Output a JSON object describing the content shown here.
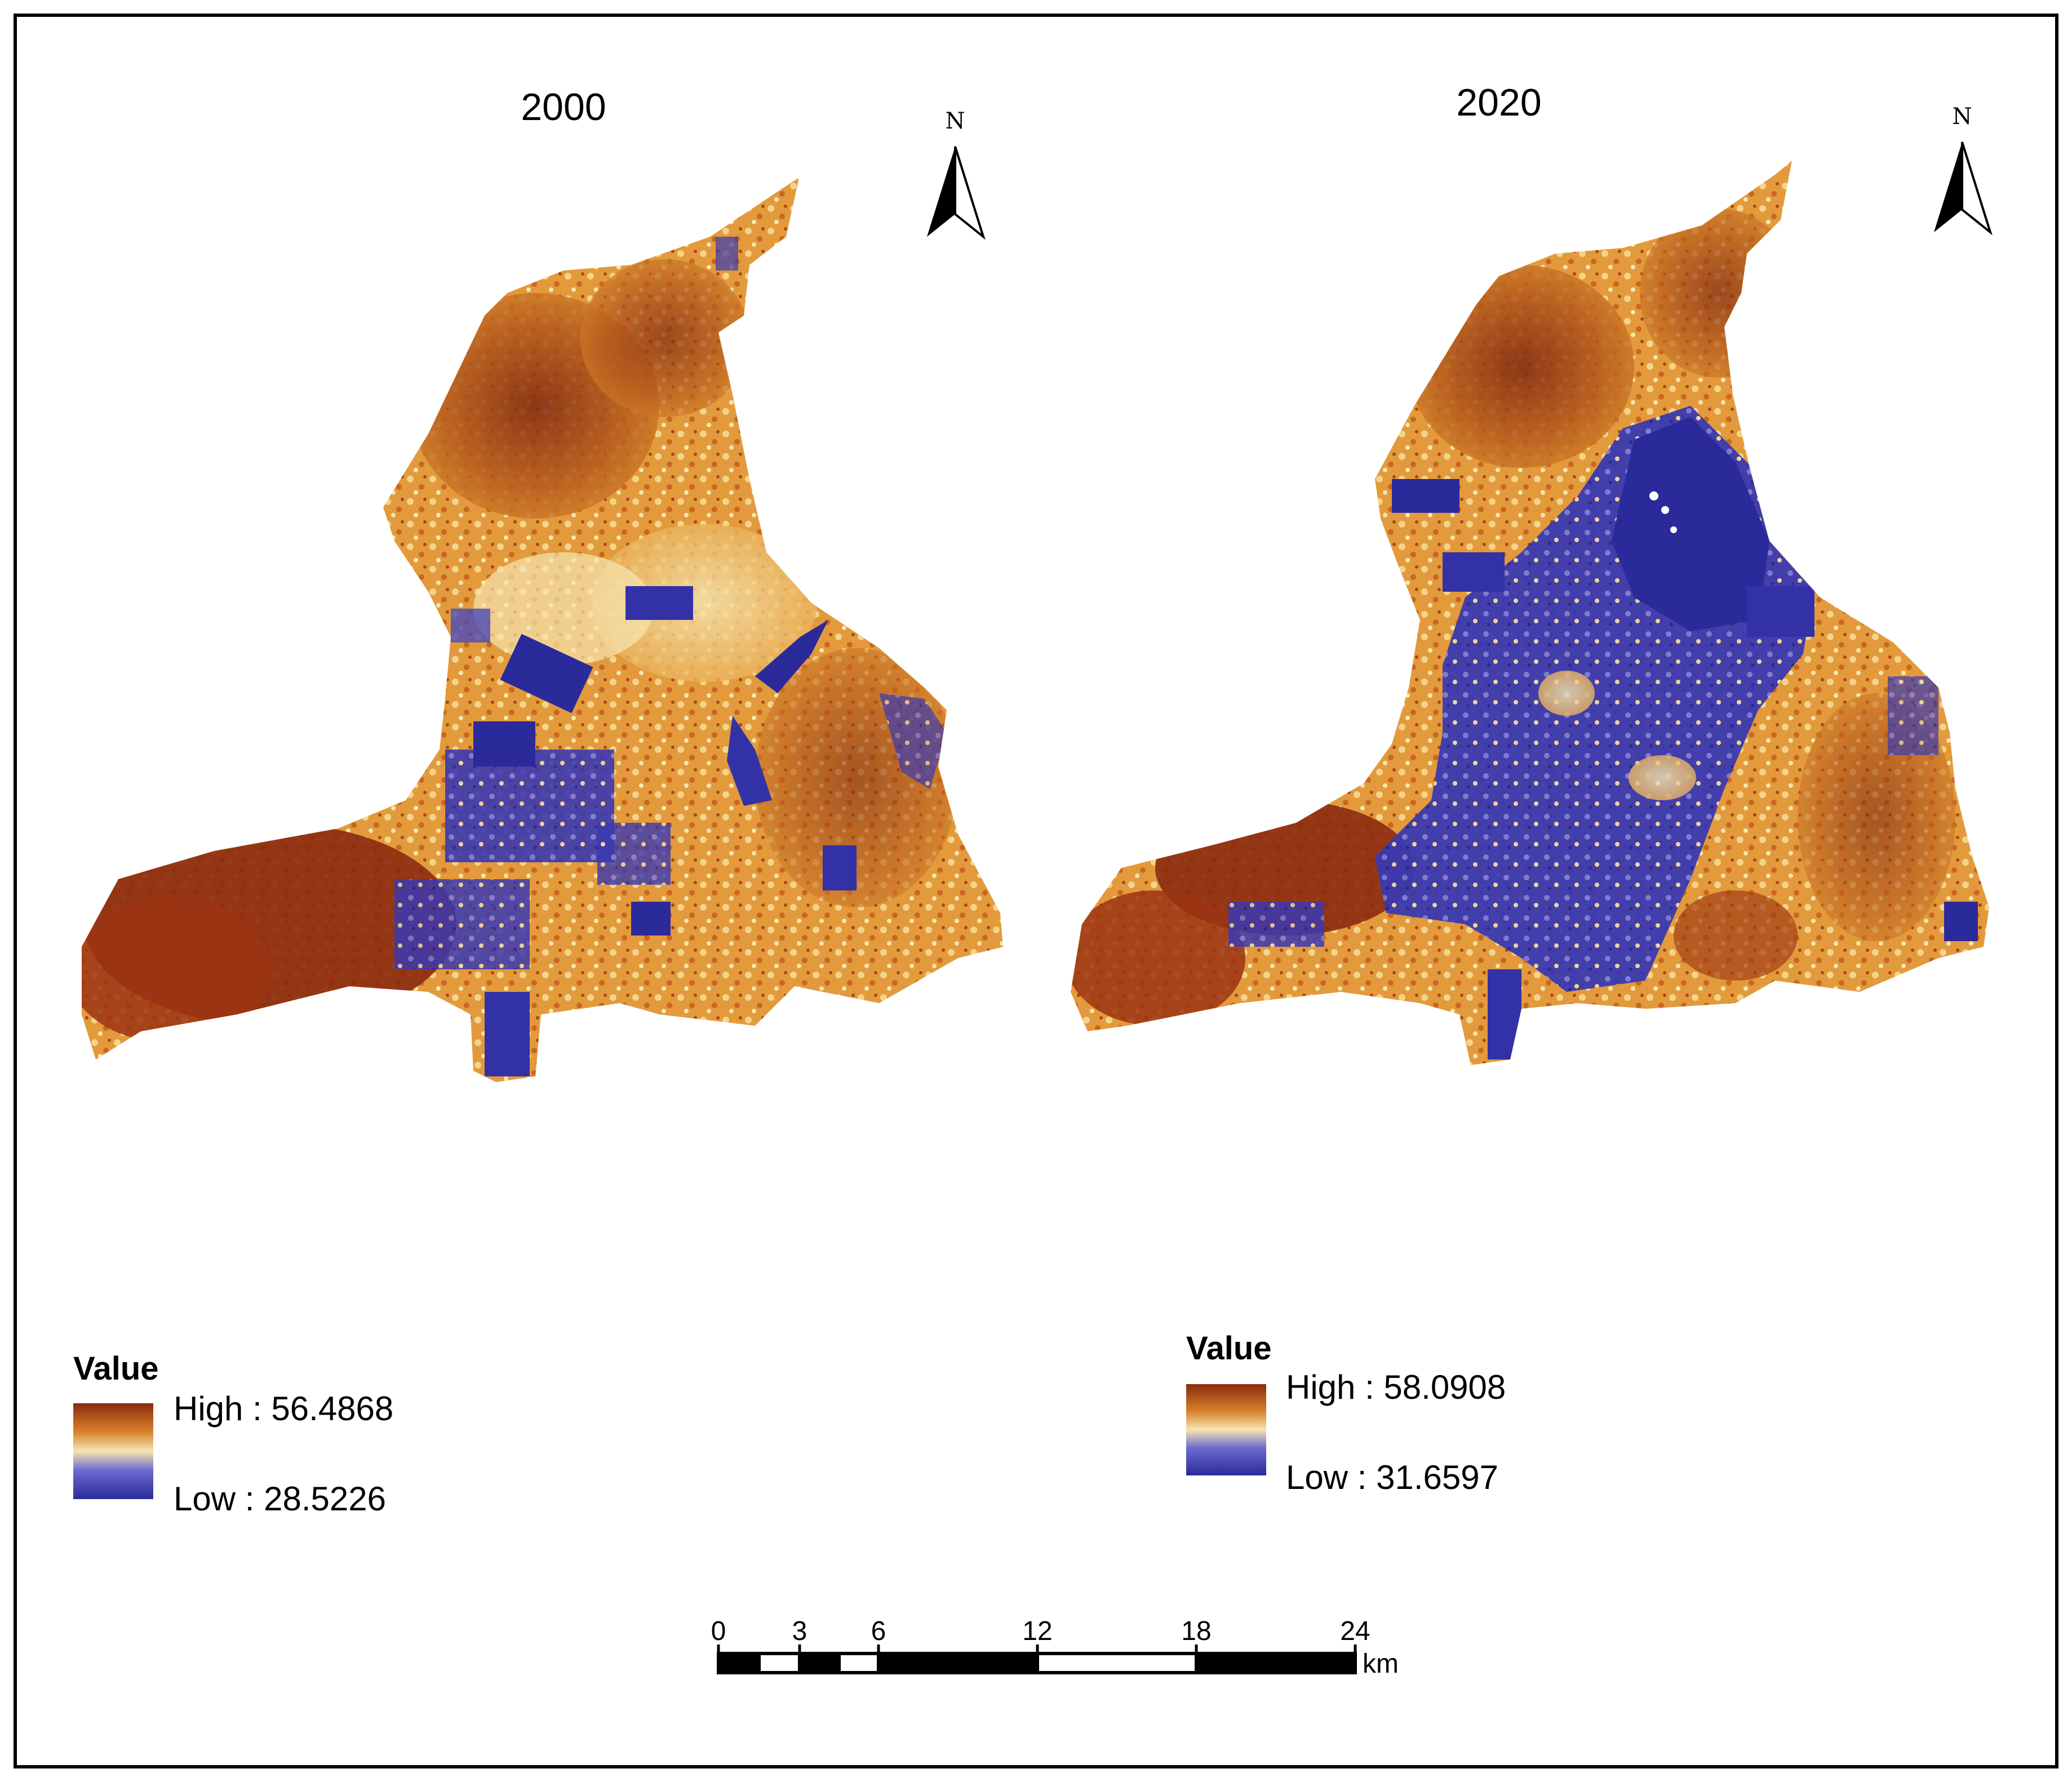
{
  "maps": [
    {
      "title": "2000",
      "north_label": "N",
      "legend": {
        "heading": "Value",
        "high_label": "High : 56.4868",
        "low_label": "Low : 28.5226"
      }
    },
    {
      "title": "2020",
      "north_label": "N",
      "legend": {
        "heading": "Value",
        "high_label": "High : 58.0908",
        "low_label": "Low : 31.6597"
      }
    }
  ],
  "colors": {
    "high": "#8b2a0f",
    "mid_high": "#d9822b",
    "mid": "#f5e6b0",
    "mid_low": "#6b6bd0",
    "low": "#2b2a9a"
  },
  "scale_bar": {
    "ticks": [
      "0",
      "3",
      "6",
      "12",
      "18",
      "24"
    ],
    "unit": "km"
  }
}
